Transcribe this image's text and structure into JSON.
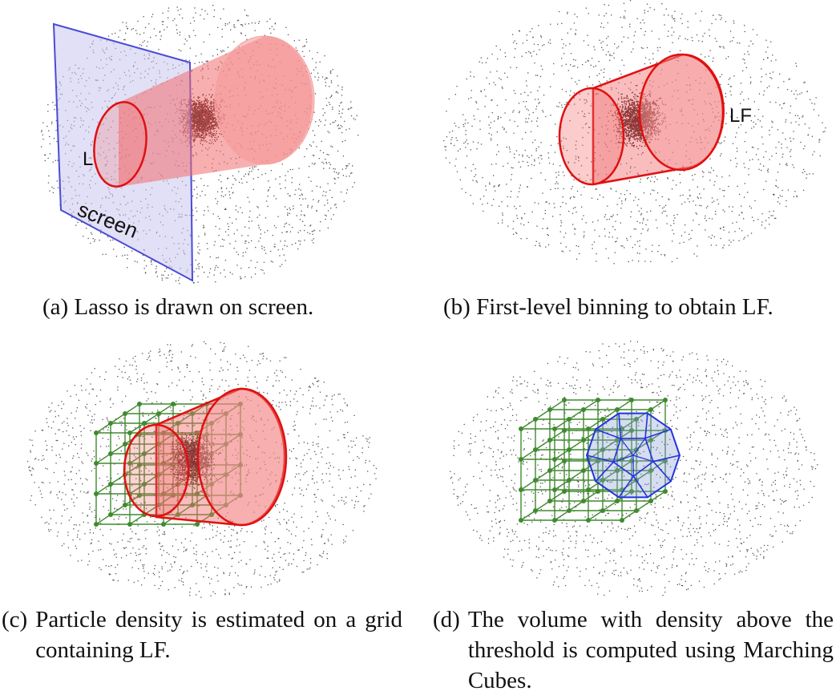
{
  "panels": {
    "a": {
      "tag": "(a)",
      "caption": "Lasso is drawn on screen.",
      "labels": {
        "lasso": "L",
        "screen": "screen"
      },
      "colors": {
        "screen_fill": "#c9c6ee",
        "screen_edge": "#4b4bd6",
        "cone": "#f26d6d",
        "cone_edge": "#e01010"
      }
    },
    "b": {
      "tag": "(b)",
      "caption": "First-level binning to obtain LF.",
      "labels": {
        "frustum": "LF"
      }
    },
    "c": {
      "tag": "(c)",
      "caption": "Particle density is estimated on a grid containing LF.",
      "colors": {
        "grid": "#3f8a2e"
      }
    },
    "d": {
      "tag": "(d)",
      "caption": "The volume with density above the threshold is computed using Marching Cubes.",
      "colors": {
        "mesh": "#2233dd"
      }
    }
  }
}
